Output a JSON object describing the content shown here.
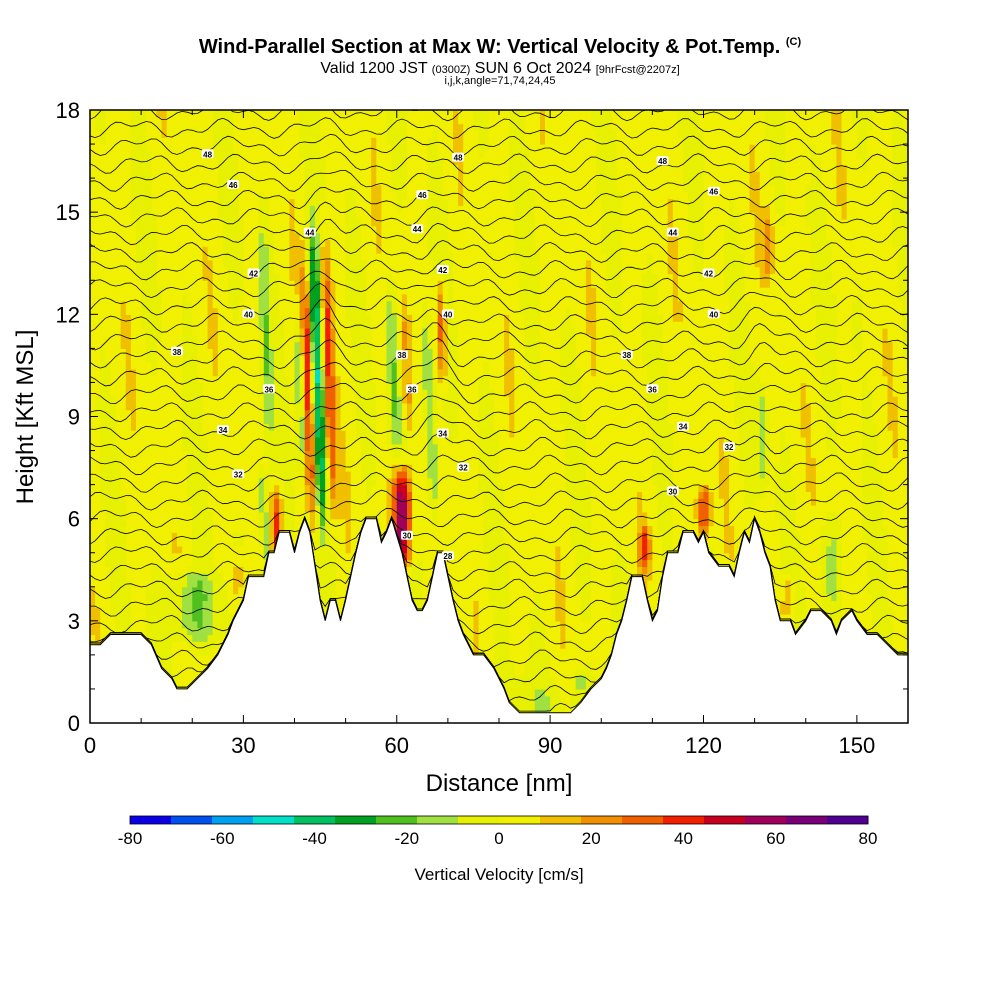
{
  "chart_data": {
    "type": "heatmap",
    "title": "Wind-Parallel Section at Max W: Vertical Velocity & Pot.Temp.",
    "title_mark": "(C)",
    "subtitle_valid": "Valid 1200 JST",
    "subtitle_utc": "(0300Z)",
    "subtitle_date": "SUN 6 Oct 2024",
    "subtitle_fcst": "[9hrFcst@2207z]",
    "subtitle_indices": "i,j,k,angle=71,74,24,45",
    "xlabel": "Distance [nm]",
    "ylabel": "Height [Kft MSL]",
    "xlim": [
      0,
      160
    ],
    "ylim": [
      0,
      18
    ],
    "x_ticks": [
      0,
      30,
      60,
      90,
      120,
      150
    ],
    "y_ticks": [
      0,
      3,
      6,
      9,
      12,
      15,
      18
    ],
    "colorbar": {
      "label": "Vertical Velocity [cm/s]",
      "tick_values": [
        -80,
        -60,
        -40,
        -20,
        0,
        20,
        40,
        60,
        80
      ],
      "colors": [
        "#0a00e6",
        "#0050f0",
        "#00a0f0",
        "#00e0c8",
        "#00c060",
        "#00a020",
        "#50c020",
        "#a0e040",
        "#e6f000",
        "#f0f000",
        "#f0c000",
        "#f09000",
        "#f06000",
        "#f02000",
        "#c80020",
        "#a0005a",
        "#780078",
        "#500090"
      ]
    },
    "contour_field": "Potential Temperature",
    "contour_levels": [
      28,
      30,
      32,
      34,
      36,
      38,
      40,
      42,
      44,
      46,
      48
    ],
    "contour_labels": [
      {
        "v": "48",
        "x": 23,
        "y": 16.7
      },
      {
        "v": "46",
        "x": 28,
        "y": 15.8
      },
      {
        "v": "44",
        "x": 43,
        "y": 14.4
      },
      {
        "v": "42",
        "x": 32,
        "y": 13.2
      },
      {
        "v": "40",
        "x": 31,
        "y": 12.0
      },
      {
        "v": "38",
        "x": 17,
        "y": 10.9
      },
      {
        "v": "36",
        "x": 35,
        "y": 9.8
      },
      {
        "v": "34",
        "x": 26,
        "y": 8.6
      },
      {
        "v": "32",
        "x": 29,
        "y": 7.3
      },
      {
        "v": "48",
        "x": 72,
        "y": 16.6
      },
      {
        "v": "46",
        "x": 65,
        "y": 15.5
      },
      {
        "v": "44",
        "x": 64,
        "y": 14.5
      },
      {
        "v": "42",
        "x": 69,
        "y": 13.3
      },
      {
        "v": "40",
        "x": 70,
        "y": 12.0
      },
      {
        "v": "38",
        "x": 61,
        "y": 10.8
      },
      {
        "v": "36",
        "x": 63,
        "y": 9.8
      },
      {
        "v": "34",
        "x": 69,
        "y": 8.5
      },
      {
        "v": "32",
        "x": 73,
        "y": 7.5
      },
      {
        "v": "30",
        "x": 62,
        "y": 5.5
      },
      {
        "v": "28",
        "x": 70,
        "y": 4.9
      },
      {
        "v": "48",
        "x": 112,
        "y": 16.5
      },
      {
        "v": "46",
        "x": 122,
        "y": 15.6
      },
      {
        "v": "44",
        "x": 114,
        "y": 14.4
      },
      {
        "v": "42",
        "x": 121,
        "y": 13.2
      },
      {
        "v": "40",
        "x": 122,
        "y": 12.0
      },
      {
        "v": "38",
        "x": 105,
        "y": 10.8
      },
      {
        "v": "36",
        "x": 110,
        "y": 9.8
      },
      {
        "v": "34",
        "x": 116,
        "y": 8.7
      },
      {
        "v": "32",
        "x": 125,
        "y": 8.1
      },
      {
        "v": "30",
        "x": 114,
        "y": 6.8
      }
    ],
    "terrain_kft": [
      [
        0,
        2.3
      ],
      [
        2,
        2.3
      ],
      [
        4,
        2.6
      ],
      [
        6,
        2.6
      ],
      [
        8,
        2.6
      ],
      [
        10,
        2.6
      ],
      [
        12,
        2.3
      ],
      [
        14,
        1.6
      ],
      [
        16,
        1.3
      ],
      [
        17,
        1.0
      ],
      [
        19,
        1.0
      ],
      [
        21,
        1.3
      ],
      [
        23,
        1.6
      ],
      [
        25,
        2.0
      ],
      [
        27,
        2.6
      ],
      [
        28,
        3.0
      ],
      [
        30,
        3.6
      ],
      [
        31,
        4.3
      ],
      [
        34,
        4.3
      ],
      [
        35,
        5.0
      ],
      [
        36,
        5.0
      ],
      [
        37,
        5.6
      ],
      [
        39,
        5.6
      ],
      [
        40,
        5.0
      ],
      [
        41,
        5.6
      ],
      [
        42,
        6.0
      ],
      [
        43,
        5.6
      ],
      [
        44,
        4.6
      ],
      [
        45,
        3.6
      ],
      [
        46,
        3.0
      ],
      [
        47,
        3.6
      ],
      [
        48,
        3.6
      ],
      [
        49,
        3.0
      ],
      [
        50,
        3.6
      ],
      [
        51,
        4.3
      ],
      [
        52,
        5.0
      ],
      [
        53,
        5.6
      ],
      [
        54,
        6.0
      ],
      [
        56,
        6.0
      ],
      [
        57,
        5.3
      ],
      [
        58,
        5.6
      ],
      [
        59,
        6.0
      ],
      [
        61,
        5.0
      ],
      [
        62,
        4.3
      ],
      [
        63,
        3.6
      ],
      [
        64,
        3.3
      ],
      [
        65,
        3.3
      ],
      [
        66,
        3.6
      ],
      [
        67,
        4.3
      ],
      [
        68,
        5.0
      ],
      [
        69,
        5.0
      ],
      [
        70,
        4.3
      ],
      [
        71,
        3.6
      ],
      [
        72,
        3.0
      ],
      [
        73,
        2.6
      ],
      [
        74,
        2.3
      ],
      [
        75,
        2.0
      ],
      [
        77,
        2.0
      ],
      [
        79,
        1.6
      ],
      [
        80,
        1.3
      ],
      [
        81,
        1.0
      ],
      [
        82,
        0.6
      ],
      [
        84,
        0.3
      ],
      [
        86,
        0.3
      ],
      [
        88,
        0.3
      ],
      [
        90,
        0.3
      ],
      [
        92,
        0.3
      ],
      [
        94,
        0.3
      ],
      [
        96,
        0.6
      ],
      [
        98,
        1.0
      ],
      [
        100,
        1.3
      ],
      [
        101,
        1.6
      ],
      [
        102,
        2.0
      ],
      [
        103,
        2.6
      ],
      [
        104,
        3.0
      ],
      [
        105,
        3.6
      ],
      [
        106,
        4.3
      ],
      [
        108,
        4.3
      ],
      [
        109,
        3.6
      ],
      [
        110,
        3.0
      ],
      [
        111,
        3.3
      ],
      [
        112,
        4.3
      ],
      [
        113,
        5.0
      ],
      [
        115,
        5.0
      ],
      [
        116,
        5.6
      ],
      [
        118,
        5.6
      ],
      [
        119,
        5.3
      ],
      [
        120,
        5.6
      ],
      [
        121,
        5.0
      ],
      [
        123,
        4.6
      ],
      [
        125,
        4.6
      ],
      [
        126,
        4.3
      ],
      [
        127,
        5.0
      ],
      [
        128,
        5.6
      ],
      [
        129,
        5.3
      ],
      [
        130,
        6.0
      ],
      [
        131,
        5.6
      ],
      [
        132,
        5.0
      ],
      [
        133,
        4.6
      ],
      [
        134,
        3.6
      ],
      [
        135,
        3.0
      ],
      [
        137,
        3.0
      ],
      [
        138,
        2.6
      ],
      [
        140,
        3.0
      ],
      [
        141,
        3.3
      ],
      [
        143,
        3.3
      ],
      [
        145,
        3.0
      ],
      [
        146,
        2.6
      ],
      [
        147,
        3.0
      ],
      [
        149,
        3.3
      ],
      [
        150,
        3.0
      ],
      [
        152,
        2.6
      ],
      [
        154,
        2.6
      ],
      [
        156,
        2.3
      ],
      [
        158,
        2.0
      ],
      [
        160,
        2.0
      ]
    ],
    "w_features": [
      {
        "x": 45.5,
        "ybot": 6.0,
        "ytop": 14.5,
        "w": -55,
        "sx": 1.2,
        "tilt": -0.25
      },
      {
        "x": 43.5,
        "ybot": 6.0,
        "ytop": 13.5,
        "w": 45,
        "sx": 1.0,
        "tilt": -0.2
      },
      {
        "x": 47.5,
        "ybot": 6.5,
        "ytop": 14.0,
        "w": 40,
        "sx": 1.0,
        "tilt": -0.2
      },
      {
        "x": 41.5,
        "ybot": 7.5,
        "ytop": 12.0,
        "w": -25,
        "sx": 0.9,
        "tilt": -0.2
      },
      {
        "x": 34.5,
        "ybot": 4.5,
        "ytop": 7.5,
        "w": -30,
        "sx": 0.8,
        "tilt": -0.3
      },
      {
        "x": 36.5,
        "ybot": 4.5,
        "ytop": 7.0,
        "w": 40,
        "sx": 1.0,
        "tilt": 0
      },
      {
        "x": 35.0,
        "ybot": 8.0,
        "ytop": 15.0,
        "w": -20,
        "sx": 1.0,
        "tilt": -0.2
      },
      {
        "x": 61.0,
        "ybot": 4.5,
        "ytop": 7.5,
        "w": 70,
        "sx": 1.8,
        "tilt": 0
      },
      {
        "x": 60.0,
        "ybot": 8.0,
        "ytop": 13.0,
        "w": -25,
        "sx": 1.2,
        "tilt": -0.3
      },
      {
        "x": 62.5,
        "ybot": 8.5,
        "ytop": 12.5,
        "w": 20,
        "sx": 1.0,
        "tilt": -0.3
      },
      {
        "x": 67.5,
        "ybot": 6.0,
        "ytop": 12.0,
        "w": -30,
        "sx": 1.1,
        "tilt": -0.35
      },
      {
        "x": 69.0,
        "ybot": 10.0,
        "ytop": 13.0,
        "w": 35,
        "sx": 1.0,
        "tilt": -0.2
      },
      {
        "x": 20.0,
        "ybot": 2.3,
        "ytop": 4.5,
        "w": -25,
        "sx": 5.0,
        "tilt": 0
      },
      {
        "x": 29.0,
        "ybot": 3.3,
        "ytop": 5.0,
        "w": 15,
        "sx": 1.5,
        "tilt": 0
      },
      {
        "x": 120.0,
        "ybot": 5.5,
        "ytop": 7.0,
        "w": 40,
        "sx": 1.3,
        "tilt": 0
      },
      {
        "x": 108.5,
        "ybot": 4.5,
        "ytop": 5.8,
        "w": 35,
        "sx": 1.0,
        "tilt": 0
      },
      {
        "x": 131.5,
        "ybot": 7.0,
        "ytop": 10.0,
        "w": -20,
        "sx": 1.0,
        "tilt": -0.1
      },
      {
        "x": 132.5,
        "ybot": 13.0,
        "ytop": 15.0,
        "w": 20,
        "sx": 1.0,
        "tilt": 0
      },
      {
        "x": 136.5,
        "ybot": 3.0,
        "ytop": 4.3,
        "w": 20,
        "sx": 1.2,
        "tilt": 0
      },
      {
        "x": 145.0,
        "ybot": 3.0,
        "ytop": 6.0,
        "w": -15,
        "sx": 2.5,
        "tilt": 0
      },
      {
        "x": 150.0,
        "ybot": 11.0,
        "ytop": 12.5,
        "w": -15,
        "sx": 1.0,
        "tilt": 0
      },
      {
        "x": 96.0,
        "ybot": 1.0,
        "ytop": 1.5,
        "w": -15,
        "sx": 1.0,
        "tilt": 0
      }
    ]
  }
}
